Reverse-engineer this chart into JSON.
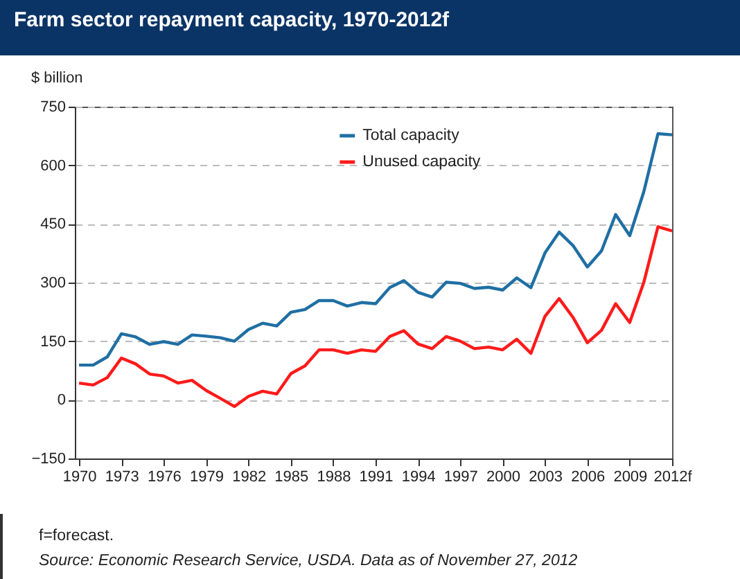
{
  "chart_data": {
    "type": "line",
    "title": "Farm sector repayment capacity, 1970-2012f",
    "ylabel": "$ billion",
    "annotations": [
      "f=forecast.",
      "Source: Economic Research Service, USDA. Data as of November 27, 2012"
    ],
    "x": [
      1970,
      1971,
      1972,
      1973,
      1974,
      1975,
      1976,
      1977,
      1978,
      1979,
      1980,
      1981,
      1982,
      1983,
      1984,
      1985,
      1986,
      1987,
      1988,
      1989,
      1990,
      1991,
      1992,
      1993,
      1994,
      1995,
      1996,
      1997,
      1998,
      1999,
      2000,
      2001,
      2002,
      2003,
      2004,
      2005,
      2006,
      2007,
      2008,
      2009,
      2010,
      2011,
      2012
    ],
    "series": [
      {
        "name": "Total capacity",
        "color": "#1f6fa3",
        "values": [
          89,
          89,
          110,
          169,
          161,
          142,
          149,
          142,
          166,
          163,
          159,
          150,
          180,
          196,
          189,
          224,
          231,
          254,
          254,
          240,
          249,
          246,
          287,
          305,
          275,
          263,
          301,
          298,
          285,
          288,
          281,
          312,
          287,
          376,
          429,
          394,
          340,
          381,
          474,
          420,
          533,
          681,
          678
        ]
      },
      {
        "name": "Unused capacity",
        "color": "#ff1a1a",
        "values": [
          43,
          38,
          57,
          107,
          92,
          66,
          61,
          43,
          50,
          24,
          4,
          -17,
          9,
          22,
          15,
          67,
          87,
          128,
          128,
          119,
          128,
          124,
          162,
          177,
          143,
          131,
          162,
          150,
          131,
          135,
          128,
          155,
          119,
          214,
          259,
          210,
          146,
          178,
          246,
          198,
          301,
          443,
          432
        ]
      }
    ],
    "xlim": [
      1969.7,
      2012
    ],
    "xticks": [
      1970,
      1973,
      1976,
      1979,
      1982,
      1985,
      1988,
      1991,
      1994,
      1997,
      2000,
      2003,
      2006,
      2009,
      {
        "value": 2012,
        "label": "2012f"
      }
    ],
    "ylim": [
      -150,
      750
    ],
    "yticks": [
      -150,
      0,
      150,
      300,
      450,
      600,
      750
    ],
    "grid": "y",
    "legend": "top",
    "line_style": "solid",
    "marker": "none"
  }
}
